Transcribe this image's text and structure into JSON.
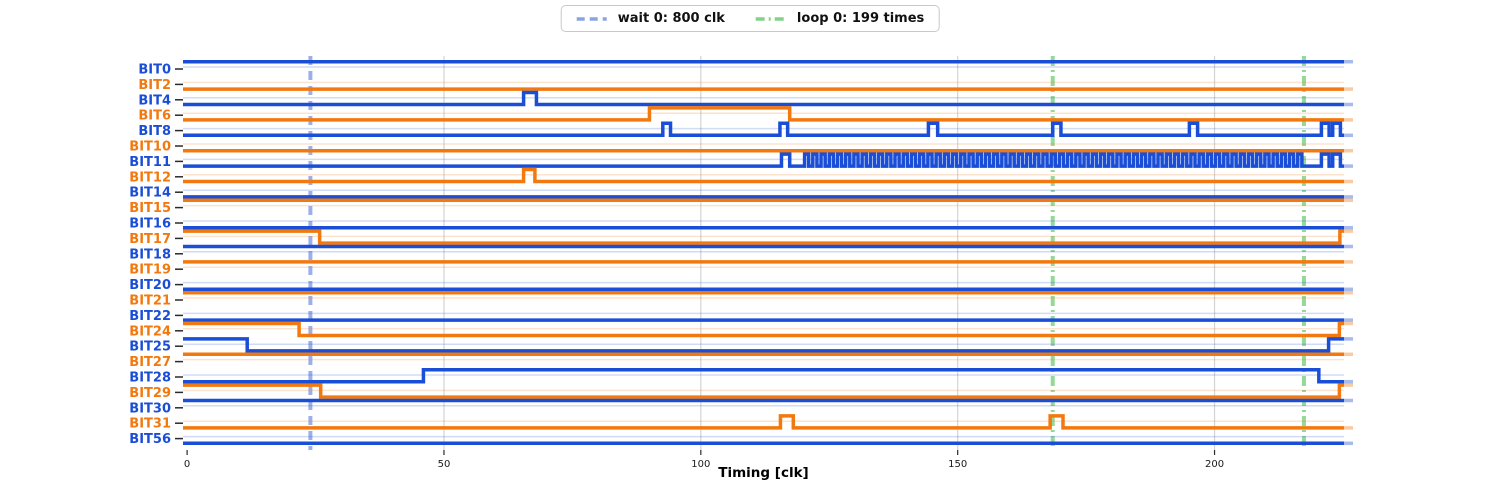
{
  "legend": {
    "items": [
      {
        "id": "wait",
        "label": "wait 0: 800 clk",
        "color": "#8ca2e6",
        "dash": "8 5"
      },
      {
        "id": "loop",
        "label": "loop 0: 199 times",
        "color": "#84d287",
        "dash": "9 4 2 4"
      }
    ]
  },
  "chart_data": {
    "type": "digital-timing-waveform",
    "xlabel": "Timing [clk]",
    "x_ticks": [
      0,
      50,
      100,
      150,
      200
    ],
    "xlim": [
      -0.8,
      225.2
    ],
    "grid": "vertical-at-x-ticks",
    "legend_position": "top-center",
    "colors": {
      "blue": "#1b4ed6",
      "orange": "#f2790f",
      "grid": "#d4d4d4",
      "wait": "#8ca2e6",
      "loop": "#84d287",
      "tick": "#2a2a2a"
    },
    "markers": [
      {
        "type": "wait",
        "clk": 24.0,
        "legend": "wait 0: 800 clk"
      },
      {
        "type": "loop",
        "clk": 168.5,
        "legend": "loop 0: 199 times"
      },
      {
        "type": "loop",
        "clk": 217.4,
        "legend": "loop 0: 199 times"
      }
    ],
    "signals": [
      {
        "name": "BIT0",
        "color": "blue",
        "initial": 1,
        "changes": [],
        "pulses": [],
        "osc": null
      },
      {
        "name": "BIT2",
        "color": "orange",
        "initial": 0,
        "changes": [],
        "pulses": [],
        "osc": null
      },
      {
        "name": "BIT4",
        "color": "blue",
        "initial": 0,
        "changes": [],
        "pulses": [
          [
            65.5,
            68.0
          ]
        ],
        "osc": null
      },
      {
        "name": "BIT6",
        "color": "orange",
        "initial": 0,
        "changes": [
          [
            90.0,
            1
          ],
          [
            117.3,
            0
          ]
        ],
        "pulses": [],
        "osc": null
      },
      {
        "name": "BIT8",
        "color": "blue",
        "initial": 0,
        "changes": [],
        "pulses": [
          [
            92.6,
            94.1
          ],
          [
            115.4,
            116.9
          ],
          [
            144.3,
            146.1
          ],
          [
            168.5,
            170.1
          ],
          [
            195.1,
            196.7
          ],
          [
            220.8,
            222.3
          ],
          [
            223.0,
            224.5
          ]
        ],
        "osc": null
      },
      {
        "name": "BIT10",
        "color": "orange",
        "initial": 0,
        "changes": [],
        "pulses": [],
        "osc": null
      },
      {
        "name": "BIT11",
        "color": "blue",
        "initial": 0,
        "changes": [],
        "pulses": [
          [
            115.7,
            117.3
          ],
          [
            220.8,
            222.3
          ],
          [
            223.0,
            224.5
          ]
        ],
        "osc": {
          "start": 120.2,
          "end": 217.4,
          "period": 1.6,
          "duty": 0.5
        }
      },
      {
        "name": "BIT12",
        "color": "orange",
        "initial": 0,
        "changes": [],
        "pulses": [
          [
            65.5,
            67.7
          ]
        ],
        "osc": null
      },
      {
        "name": "BIT14",
        "color": "blue",
        "initial": 0,
        "changes": [],
        "pulses": [],
        "osc": null
      },
      {
        "name": "BIT15",
        "color": "orange",
        "initial": 1,
        "changes": [],
        "pulses": [],
        "osc": null
      },
      {
        "name": "BIT16",
        "color": "blue",
        "initial": 0,
        "changes": [],
        "pulses": [],
        "osc": null
      },
      {
        "name": "BIT17",
        "color": "orange",
        "initial": 1,
        "changes": [
          [
            25.8,
            0
          ],
          [
            224.4,
            1
          ]
        ],
        "pulses": [],
        "osc": null
      },
      {
        "name": "BIT18",
        "color": "blue",
        "initial": 1,
        "changes": [],
        "pulses": [],
        "osc": null
      },
      {
        "name": "BIT19",
        "color": "orange",
        "initial": 1,
        "changes": [],
        "pulses": [],
        "osc": null
      },
      {
        "name": "BIT20",
        "color": "blue",
        "initial": 0,
        "changes": [],
        "pulses": [],
        "osc": null
      },
      {
        "name": "BIT21",
        "color": "orange",
        "initial": 1,
        "changes": [],
        "pulses": [],
        "osc": null
      },
      {
        "name": "BIT22",
        "color": "blue",
        "initial": 0,
        "changes": [],
        "pulses": [],
        "osc": null
      },
      {
        "name": "BIT24",
        "color": "orange",
        "initial": 1,
        "changes": [
          [
            21.8,
            0
          ],
          [
            224.3,
            1
          ]
        ],
        "pulses": [],
        "osc": null
      },
      {
        "name": "BIT25",
        "color": "blue",
        "initial": 1,
        "changes": [
          [
            11.7,
            0
          ],
          [
            222.2,
            1
          ]
        ],
        "pulses": [],
        "osc": null
      },
      {
        "name": "BIT27",
        "color": "orange",
        "initial": 1,
        "changes": [],
        "pulses": [],
        "osc": null
      },
      {
        "name": "BIT28",
        "color": "blue",
        "initial": 0,
        "changes": [
          [
            46.0,
            1
          ],
          [
            220.3,
            0
          ]
        ],
        "pulses": [],
        "osc": null
      },
      {
        "name": "BIT29",
        "color": "orange",
        "initial": 1,
        "changes": [
          [
            26.0,
            0
          ],
          [
            224.3,
            1
          ]
        ],
        "pulses": [],
        "osc": null
      },
      {
        "name": "BIT30",
        "color": "blue",
        "initial": 1,
        "changes": [],
        "pulses": [],
        "osc": null
      },
      {
        "name": "BIT31",
        "color": "orange",
        "initial": 0,
        "changes": [],
        "pulses": [
          [
            115.5,
            118.0
          ],
          [
            168.0,
            170.5
          ]
        ],
        "osc": null
      },
      {
        "name": "BIT56",
        "color": "blue",
        "initial": 0,
        "changes": [],
        "pulses": [],
        "osc": null
      }
    ]
  }
}
